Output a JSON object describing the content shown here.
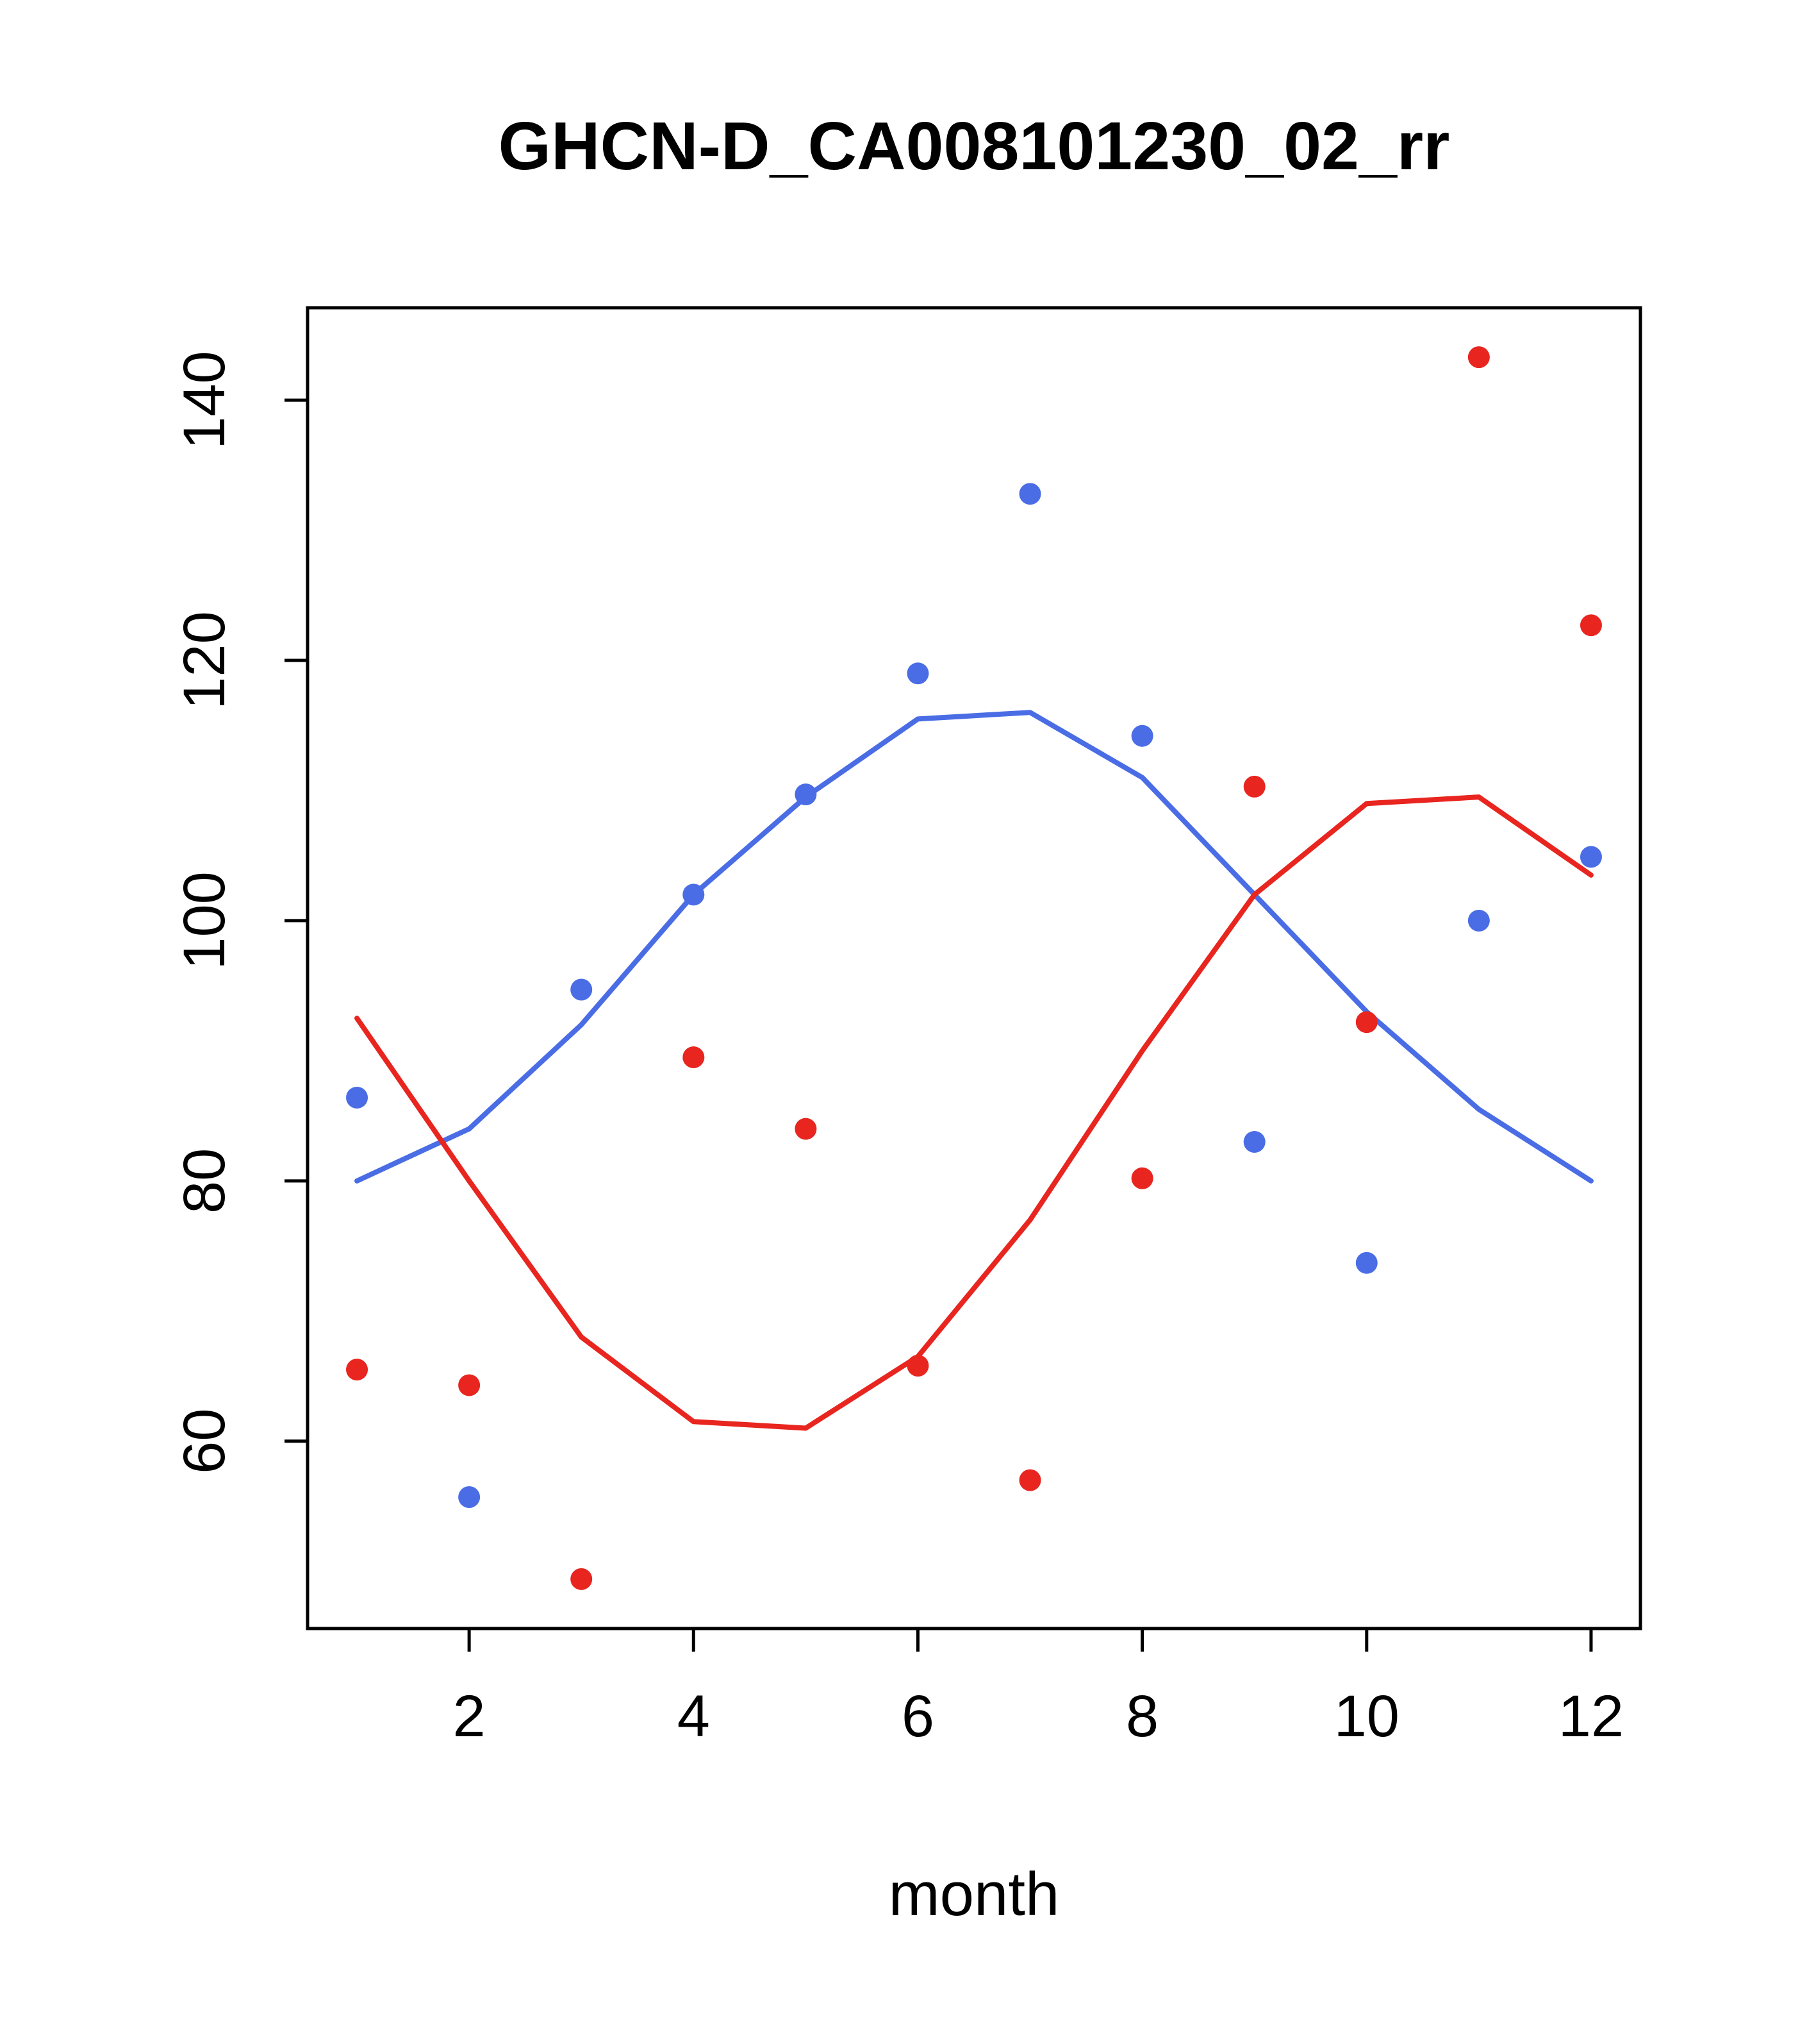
{
  "chart_data": {
    "type": "scatter",
    "title": "GHCN-D_CA008101230_02_rr",
    "xlabel": "month",
    "ylabel": "",
    "grid": false,
    "legend": "none",
    "xlim": [
      0.56,
      12.44
    ],
    "ylim": [
      45.6,
      147.1
    ],
    "x_ticks": [
      2,
      4,
      6,
      8,
      10,
      12
    ],
    "y_ticks": [
      60,
      80,
      100,
      120,
      140
    ],
    "x": [
      1,
      2,
      3,
      4,
      5,
      6,
      7,
      8,
      9,
      10,
      11,
      12
    ],
    "colors": {
      "series1": "#4a6de5",
      "series2": "#e8251f",
      "axis": "#000000"
    },
    "series": [
      {
        "name": "series1-smooth-line",
        "kind": "line",
        "color": "#4a6de5",
        "values": [
          80,
          84,
          92,
          102,
          109.5,
          115.5,
          116,
          111,
          102,
          93,
          85.5,
          80
        ]
      },
      {
        "name": "series2-smooth-line",
        "kind": "line",
        "color": "#e8251f",
        "values": [
          92.5,
          80,
          68,
          61.5,
          61,
          66.5,
          77,
          90,
          102,
          109,
          109.5,
          103.5
        ]
      },
      {
        "name": "series1-points",
        "kind": "points",
        "color": "#4a6de5",
        "values": [
          86.4,
          55.7,
          94.7,
          102,
          109.7,
          119,
          132.8,
          114.2,
          83,
          73.7,
          100,
          104.9
        ]
      },
      {
        "name": "series2-points",
        "kind": "points",
        "color": "#e8251f",
        "values": [
          65.5,
          64.3,
          49.4,
          89.5,
          84,
          65.8,
          57,
          80.2,
          110.3,
          92.2,
          143.3,
          122.7
        ]
      }
    ]
  }
}
